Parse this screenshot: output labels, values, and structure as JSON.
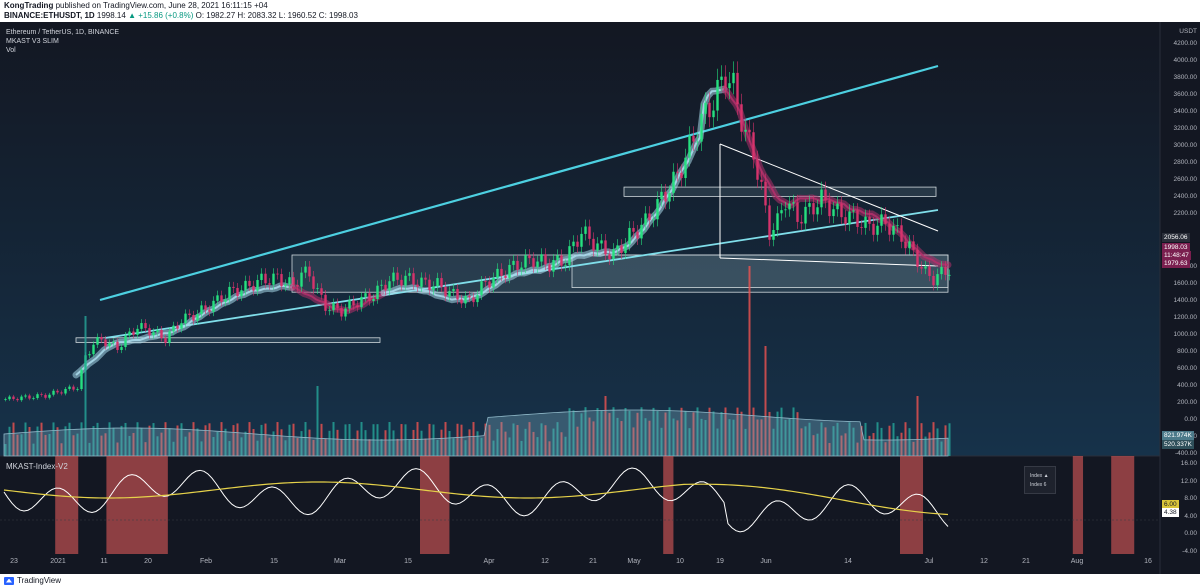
{
  "header": {
    "author": "KongTrading",
    "published": "published on TradingView.com, June 28, 2021 16:11:15 +04",
    "symbol": "BINANCE:ETHUSDT, 1D",
    "last_price": "1998.14",
    "change": "▲ +15.86 (+0.8%)",
    "ohlc": "O: 1982.27 H: 2083.32 L: 1960.52 C: 1998.03"
  },
  "legend": {
    "title": "Ethereum / TetherUS, 1D, BINANCE",
    "indicator": "MKAST V3 SLIM",
    "volume": "Vol"
  },
  "price_axis": {
    "unit": "USDT",
    "labels": [
      "4200.00",
      "4000.00",
      "3800.00",
      "3600.00",
      "3400.00",
      "3200.00",
      "3000.00",
      "2800.00",
      "2600.00",
      "2400.00",
      "2200.00",
      "1800.00",
      "1600.00",
      "1400.00",
      "1200.00",
      "1000.00",
      "800.00",
      "600.00",
      "400.00",
      "200.00",
      "0.00",
      "-200.00",
      "-400.00"
    ]
  },
  "price_tags": {
    "t1": "2056.06",
    "t2": "1998.03",
    "t3": "11:48:47",
    "t4": "1979.63",
    "vol1": "821.974K",
    "vol2": "520.337K"
  },
  "indicator_panel": {
    "title": "MKAST-Index-V2",
    "axis": [
      "16.00",
      "12.00",
      "8.00",
      "4.00",
      "0.00",
      "-4.00"
    ],
    "value_yellow": "6.00",
    "value_white": "4.38",
    "popup_1": "Index ▲",
    "popup_2": "Index 6"
  },
  "time_axis": {
    "labels": [
      "23",
      "2021",
      "11",
      "20",
      "Feb",
      "15",
      "Mar",
      "15",
      "Apr",
      "12",
      "21",
      "May",
      "10",
      "19",
      "Jun",
      "14",
      "Jul",
      "12",
      "21",
      "Aug",
      "16"
    ]
  },
  "footer": {
    "brand": "TradingView"
  },
  "chart_data": {
    "type": "candlestick",
    "title": "Ethereum / TetherUS, 1D, BINANCE",
    "ylabel": "USDT",
    "ylim": [
      -400,
      4400
    ],
    "close_path": [
      [
        0,
        600
      ],
      [
        5,
        620
      ],
      [
        10,
        640
      ],
      [
        15,
        700
      ],
      [
        18,
        730
      ],
      [
        20,
        1050
      ],
      [
        22,
        1200
      ],
      [
        24,
        1240
      ],
      [
        28,
        1150
      ],
      [
        30,
        1250
      ],
      [
        33,
        1380
      ],
      [
        36,
        1340
      ],
      [
        40,
        1250
      ],
      [
        44,
        1450
      ],
      [
        48,
        1520
      ],
      [
        51,
        1600
      ],
      [
        56,
        1750
      ],
      [
        60,
        1800
      ],
      [
        64,
        1880
      ],
      [
        68,
        1900
      ],
      [
        72,
        1820
      ],
      [
        74,
        1950
      ],
      [
        76,
        1950
      ],
      [
        78,
        1750
      ],
      [
        80,
        1600
      ],
      [
        84,
        1550
      ],
      [
        88,
        1650
      ],
      [
        92,
        1720
      ],
      [
        96,
        1880
      ],
      [
        100,
        1900
      ],
      [
        104,
        1850
      ],
      [
        108,
        1830
      ],
      [
        112,
        1720
      ],
      [
        116,
        1650
      ],
      [
        120,
        1850
      ],
      [
        124,
        1950
      ],
      [
        128,
        2050
      ],
      [
        132,
        2100
      ],
      [
        136,
        2050
      ],
      [
        140,
        2100
      ],
      [
        144,
        2400
      ],
      [
        148,
        2250
      ],
      [
        152,
        2150
      ],
      [
        156,
        2350
      ],
      [
        160,
        2500
      ],
      [
        164,
        2750
      ],
      [
        168,
        3000
      ],
      [
        171,
        3300
      ],
      [
        174,
        3600
      ],
      [
        177,
        3800
      ],
      [
        180,
        4100
      ],
      [
        182,
        3950
      ],
      [
        185,
        3450
      ],
      [
        187,
        3250
      ],
      [
        189,
        2850
      ],
      [
        191,
        2400
      ],
      [
        193,
        2500
      ],
      [
        195,
        2750
      ],
      [
        198,
        2550
      ],
      [
        200,
        2600
      ],
      [
        204,
        2750
      ],
      [
        208,
        2600
      ],
      [
        212,
        2550
      ],
      [
        216,
        2450
      ],
      [
        220,
        2500
      ],
      [
        224,
        2350
      ],
      [
        228,
        2100
      ],
      [
        230,
        1950
      ],
      [
        232,
        1900
      ],
      [
        234,
        1950
      ],
      [
        236,
        2000
      ]
    ],
    "zones": [
      [
        1750,
        2150
      ],
      [
        2780,
        2880
      ],
      [
        1210,
        1260
      ],
      [
        1800,
        2150
      ]
    ],
    "volume_spikes": [
      [
        20,
        140
      ],
      [
        78,
        70
      ],
      [
        150,
        60
      ],
      [
        186,
        190
      ],
      [
        190,
        110
      ],
      [
        228,
        60
      ]
    ],
    "index_bands": [
      [
        8,
        11
      ],
      [
        16,
        25
      ],
      [
        65,
        69
      ],
      [
        103,
        104
      ],
      [
        140,
        143
      ],
      [
        167,
        168
      ],
      [
        173,
        176
      ]
    ]
  }
}
